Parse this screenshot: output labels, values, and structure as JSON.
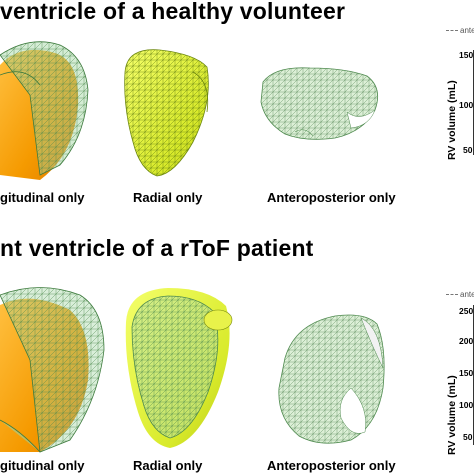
{
  "panel_top": {
    "title": "ventricle of a healthy volunteer",
    "captions": [
      "gitudinal only",
      "Radial only",
      "Anteroposterior only"
    ],
    "chart": {
      "ylabel": "RV volume (mL)",
      "legend": "ante",
      "ticks": [
        "150",
        "100",
        "50"
      ]
    }
  },
  "panel_bottom": {
    "title": "nt ventricle of a rToF patient",
    "captions": [
      "gitudinal only",
      "Radial only",
      "Anteroposterior only"
    ],
    "chart": {
      "ylabel": "RV volume (mL)",
      "legend": "ante",
      "ticks": [
        "250",
        "200",
        "150",
        "100",
        "50"
      ]
    }
  },
  "colors": {
    "orange": "#f5a200",
    "yellow": "#e4f03a",
    "mesh_green": "#7fc07f",
    "light_green": "#d8ecd2"
  }
}
